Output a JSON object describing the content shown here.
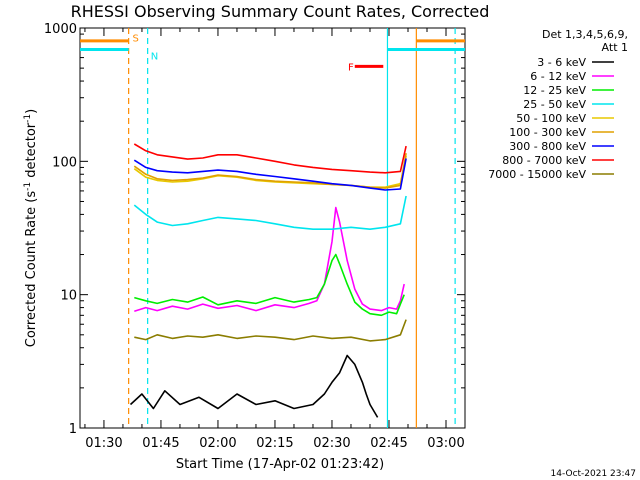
{
  "chart_data": {
    "type": "line",
    "title": "RHESSI Observing Summary Count Rates, Corrected",
    "xlabel": "Start Time (17-Apr-02 01:23:42)",
    "ylabel_main": "Corrected Count Rate (s",
    "ylabel_sup1": "-1",
    "ylabel_mid": " detector",
    "ylabel_sup2": "-1",
    "ylabel_end": ")",
    "yscale": "log",
    "ylim": [
      1,
      1000
    ],
    "xlim_minutes": [
      83.7,
      185
    ],
    "x_ticks": [
      {
        "label": "01:30",
        "v": 90
      },
      {
        "label": "01:45",
        "v": 105
      },
      {
        "label": "02:00",
        "v": 120
      },
      {
        "label": "02:15",
        "v": 135
      },
      {
        "label": "02:30",
        "v": 150
      },
      {
        "label": "02:45",
        "v": 165
      },
      {
        "label": "03:00",
        "v": 180
      }
    ],
    "y_ticks": [
      {
        "label": "1",
        "v": 1
      },
      {
        "label": "10",
        "v": 10
      },
      {
        "label": "100",
        "v": 100
      },
      {
        "label": "1000",
        "v": 1000
      }
    ],
    "legend_header": [
      "Det 1,3,4,5,6,9,",
      "Att 1"
    ],
    "legend_position": "right",
    "series": [
      {
        "name": "3 - 6 keV",
        "color": "#000000",
        "x": [
          97,
          100,
          103,
          106,
          110,
          115,
          120,
          125,
          130,
          135,
          140,
          145,
          148,
          150,
          152,
          154,
          156,
          158,
          159,
          160,
          162
        ],
        "y": [
          1.5,
          1.8,
          1.4,
          1.9,
          1.5,
          1.7,
          1.4,
          1.8,
          1.5,
          1.6,
          1.4,
          1.5,
          1.8,
          2.2,
          2.6,
          3.5,
          3.0,
          2.2,
          1.8,
          1.5,
          1.2
        ]
      },
      {
        "name": "6 - 12 keV",
        "color": "#ff00ff",
        "x": [
          98,
          101,
          104,
          108,
          112,
          116,
          120,
          125,
          130,
          135,
          140,
          144,
          146,
          148,
          150,
          151,
          152,
          154,
          156,
          158,
          160,
          163,
          165,
          167,
          168,
          169
        ],
        "y": [
          7.5,
          8.0,
          7.6,
          8.2,
          7.8,
          8.5,
          7.9,
          8.3,
          7.6,
          8.4,
          8.0,
          8.6,
          9.0,
          12,
          25,
          45,
          35,
          18,
          11,
          8.5,
          7.8,
          7.6,
          8.0,
          7.8,
          9,
          12
        ]
      },
      {
        "name": "12 - 25 keV",
        "color": "#00ee00",
        "x": [
          98,
          101,
          104,
          108,
          112,
          116,
          120,
          125,
          130,
          135,
          140,
          144,
          146,
          148,
          150,
          151,
          152,
          154,
          156,
          158,
          160,
          163,
          165,
          167,
          168,
          169
        ],
        "y": [
          9.5,
          9.0,
          8.6,
          9.2,
          8.8,
          9.6,
          8.4,
          9.0,
          8.6,
          9.5,
          8.8,
          9.2,
          9.5,
          12,
          18,
          20,
          17,
          12,
          8.8,
          7.8,
          7.2,
          7.0,
          7.4,
          7.2,
          8.5,
          10
        ]
      },
      {
        "name": "25 - 50 keV",
        "color": "#00e5ee",
        "x": [
          98,
          101,
          104,
          108,
          112,
          116,
          120,
          125,
          130,
          135,
          140,
          145,
          150,
          155,
          160,
          164,
          168,
          169.5
        ],
        "y": [
          47,
          40,
          35,
          33,
          34,
          36,
          38,
          37,
          36,
          34,
          32,
          31,
          31,
          32,
          31,
          32,
          34,
          55
        ]
      },
      {
        "name": "50 - 100 keV",
        "color": "#e8c800",
        "x": [
          98,
          101,
          104,
          108,
          112,
          116,
          120,
          125,
          130,
          135,
          140,
          145,
          150,
          155,
          160,
          164,
          168,
          169.5
        ],
        "y": [
          88,
          76,
          72,
          70,
          71,
          74,
          78,
          76,
          72,
          70,
          69,
          68,
          67,
          66,
          64,
          64,
          68,
          110
        ]
      },
      {
        "name": "100 - 300 keV",
        "color": "#e0a000",
        "x": [
          98,
          101,
          104,
          108,
          112,
          116,
          120,
          125,
          130,
          135,
          140,
          145,
          150,
          155,
          160,
          164,
          168,
          169.5
        ],
        "y": [
          92,
          80,
          74,
          72,
          73,
          75,
          79,
          77,
          73,
          71,
          70,
          69,
          67,
          66,
          64,
          63,
          66,
          115
        ]
      },
      {
        "name": "300 - 800 keV",
        "color": "#0000ff",
        "x": [
          98,
          101,
          104,
          108,
          112,
          116,
          120,
          125,
          130,
          135,
          140,
          145,
          150,
          155,
          160,
          164,
          168,
          169.5
        ],
        "y": [
          102,
          90,
          85,
          83,
          82,
          84,
          86,
          84,
          80,
          77,
          74,
          71,
          68,
          66,
          63,
          61,
          62,
          105
        ]
      },
      {
        "name": "800 - 7000 keV",
        "color": "#ff0000",
        "x": [
          98,
          101,
          104,
          108,
          112,
          116,
          120,
          125,
          130,
          135,
          140,
          145,
          150,
          155,
          160,
          164,
          168,
          169.5
        ],
        "y": [
          135,
          120,
          112,
          108,
          104,
          106,
          112,
          112,
          106,
          100,
          94,
          90,
          87,
          85,
          83,
          82,
          84,
          130
        ]
      },
      {
        "name": "7000 - 15000 keV",
        "color": "#8b7d00",
        "x": [
          98,
          101,
          104,
          108,
          112,
          116,
          120,
          125,
          130,
          135,
          140,
          145,
          150,
          155,
          160,
          164,
          168,
          169.5
        ],
        "y": [
          4.8,
          4.6,
          5.0,
          4.7,
          4.9,
          4.8,
          5.0,
          4.7,
          4.9,
          4.8,
          4.6,
          4.9,
          4.7,
          4.8,
          4.5,
          4.6,
          5.0,
          6.5
        ]
      }
    ],
    "vertical_markers": [
      {
        "v": 96.5,
        "color": "#ff8c00",
        "style": "dashed"
      },
      {
        "v": 101.5,
        "color": "#00e5ee",
        "style": "dashed"
      },
      {
        "v": 164.6,
        "color": "#00e5ee",
        "style": "solid"
      },
      {
        "v": 172.2,
        "color": "#ff8c00",
        "style": "solid"
      },
      {
        "v": 182.4,
        "color": "#00e5ee",
        "style": "dashed"
      }
    ],
    "bars_top": [
      {
        "label": "S",
        "color": "#ff8c00",
        "v_start": 83.7,
        "v_end": 96.5,
        "y": 800,
        "label_v": 97.5,
        "label_y": 850
      },
      {
        "label": "N",
        "color": "#00e5ee",
        "v_start": 83.7,
        "v_end": 96.5,
        "y": 690,
        "label_v": 102.3,
        "label_y": 620
      },
      {
        "label": "",
        "color": "#ff8c00",
        "v_start": 172.2,
        "v_end": 185,
        "y": 800,
        "label_v": 0,
        "label_y": 0
      },
      {
        "label": "",
        "color": "#00e5ee",
        "v_start": 164.6,
        "v_end": 185,
        "y": 690,
        "label_v": 0,
        "label_y": 0
      },
      {
        "label": "F",
        "color": "#ff0000",
        "v_start": 156,
        "v_end": 163.5,
        "y": 515,
        "label_v": 154.2,
        "label_y": 515
      }
    ],
    "timestamp": "14-Oct-2021 23:47"
  }
}
